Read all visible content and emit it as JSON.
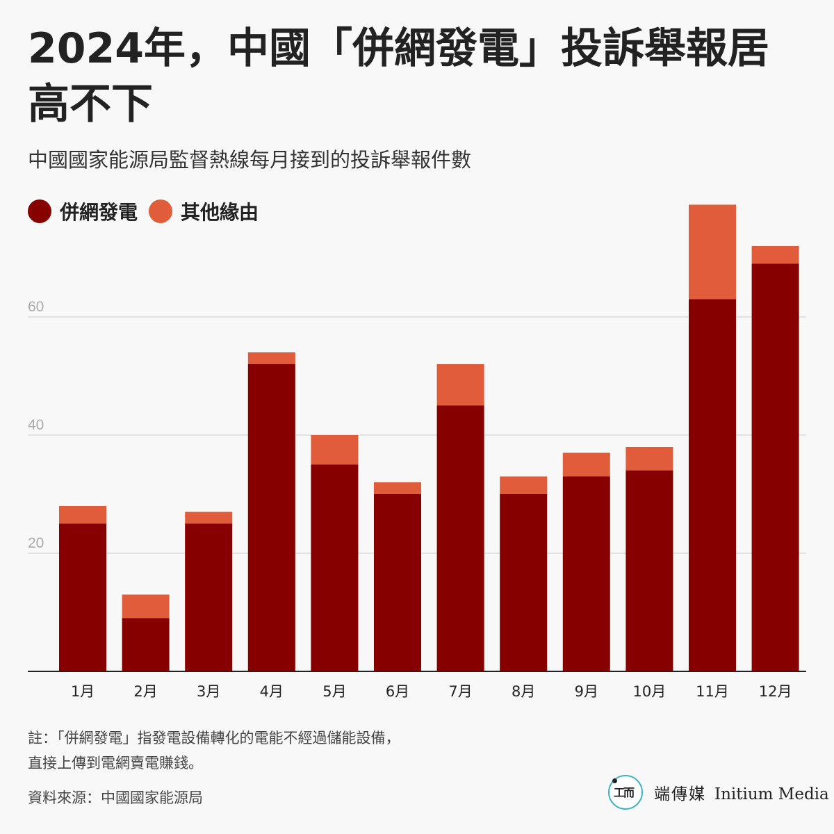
{
  "title": "2024年，中國「併網發電」投訴舉報居高不下",
  "subtitle": "中國國家能源局監督熱線每月接到的投訴舉報件數",
  "colors": {
    "grid_connected": "#870000",
    "other": "#e05c3b",
    "grid": "#e2e2e2",
    "axis": "#222222",
    "tick": "#aaaaaa"
  },
  "chart_data": {
    "type": "bar",
    "stacked": true,
    "categories": [
      "1月",
      "2月",
      "3月",
      "4月",
      "5月",
      "6月",
      "7月",
      "8月",
      "9月",
      "10月",
      "11月",
      "12月"
    ],
    "series": [
      {
        "name": "併網發電",
        "values": [
          25,
          9,
          25,
          52,
          35,
          30,
          45,
          30,
          33,
          34,
          63,
          69
        ]
      },
      {
        "name": "其他緣由",
        "values": [
          3,
          4,
          2,
          2,
          5,
          2,
          7,
          3,
          4,
          4,
          16,
          3
        ]
      }
    ],
    "y_ticks": [
      20,
      40,
      60
    ],
    "ylim": [
      0,
      80
    ],
    "xlabel": "",
    "ylabel": "",
    "grid": true,
    "legend_position": "top-left"
  },
  "note": {
    "line1": "註：「併網發電」指發電設備轉化的電能不經過儲能設備，",
    "line2": "直接上傳到電網賣電賺錢。"
  },
  "source": "資料來源：中國國家能源局",
  "brand": {
    "cn": "端傳媒",
    "en": "Initium Media"
  }
}
